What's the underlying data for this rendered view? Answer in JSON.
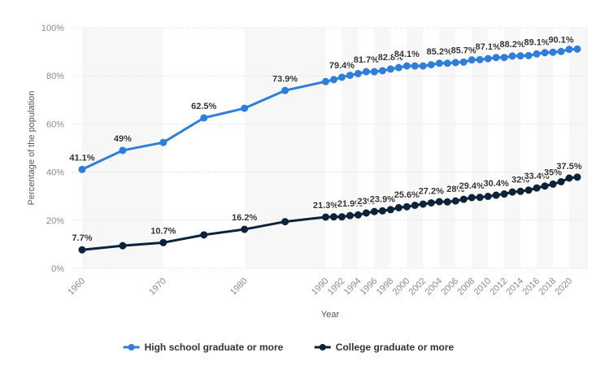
{
  "chart_data": {
    "type": "line",
    "xlabel": "Year",
    "ylabel": "Percentage of the population",
    "ylim": [
      0,
      100
    ],
    "y_ticks": [
      "0%",
      "20%",
      "40%",
      "60%",
      "80%",
      "100%"
    ],
    "x_tick_labels": [
      "1960",
      "1970",
      "1980",
      "1990",
      "1992",
      "1994",
      "1996",
      "1998",
      "2000",
      "2002",
      "2004",
      "2006",
      "2008",
      "2010",
      "2012",
      "2014",
      "2016",
      "2018",
      "2020"
    ],
    "x": [
      "1960",
      "1965",
      "1970",
      "1975",
      "1980",
      "1985",
      "1990",
      "1991",
      "1992",
      "1993",
      "1994",
      "1995",
      "1996",
      "1997",
      "1998",
      "1999",
      "2000",
      "2001",
      "2002",
      "2003",
      "2004",
      "2005",
      "2006",
      "2007",
      "2008",
      "2009",
      "2010",
      "2011",
      "2012",
      "2013",
      "2014",
      "2015",
      "2016",
      "2017",
      "2018",
      "2019",
      "2020",
      "2021"
    ],
    "grid": "horizontal",
    "legend_position": "bottom",
    "series": [
      {
        "name": "High school graduate or more",
        "color": "#2f7ed8",
        "values": [
          41.1,
          49.0,
          52.3,
          62.5,
          66.5,
          73.9,
          77.6,
          78.4,
          79.4,
          80.2,
          80.9,
          81.7,
          81.7,
          82.1,
          82.8,
          83.4,
          84.1,
          84.1,
          84.1,
          84.6,
          85.2,
          85.2,
          85.5,
          85.7,
          86.6,
          86.7,
          87.1,
          87.6,
          87.6,
          88.2,
          88.3,
          88.4,
          89.1,
          89.6,
          89.8,
          90.1,
          91.0,
          91.1
        ],
        "labels": [
          "41.1%",
          "49%",
          "",
          "62.5%",
          "",
          "73.9%",
          "",
          "",
          "79.4%",
          "",
          "",
          "81.7%",
          "",
          "",
          "82.8%",
          "",
          "84.1%",
          "",
          "",
          "",
          "85.2%",
          "",
          "",
          "85.7%",
          "",
          "",
          "87.1%",
          "",
          "",
          "88.2%",
          "",
          "",
          "89.1%",
          "",
          "",
          "90.1%",
          "",
          ""
        ]
      },
      {
        "name": "College graduate or more",
        "color": "#0d233a",
        "values": [
          7.7,
          9.4,
          10.7,
          13.9,
          16.2,
          19.4,
          21.3,
          21.4,
          21.4,
          21.9,
          22.2,
          23.0,
          23.6,
          23.9,
          24.4,
          25.2,
          25.6,
          26.2,
          26.7,
          27.2,
          27.7,
          27.6,
          28.0,
          28.7,
          29.4,
          29.5,
          29.9,
          30.4,
          30.9,
          31.7,
          32.0,
          32.5,
          33.4,
          34.2,
          35.0,
          36.0,
          37.5,
          37.9
        ],
        "labels": [
          "7.7%",
          "",
          "10.7%",
          "",
          "16.2%",
          "",
          "21.3%",
          "",
          "",
          "21.9%",
          "",
          "23%",
          "",
          "23.9%",
          "",
          "",
          "25.6%",
          "",
          "",
          "27.2%",
          "",
          "",
          "28%",
          "",
          "29.4%",
          "",
          "",
          "30.4%",
          "",
          "",
          "32%",
          "",
          "33.4%",
          "",
          "35%",
          "",
          "37.5%",
          ""
        ]
      }
    ]
  }
}
